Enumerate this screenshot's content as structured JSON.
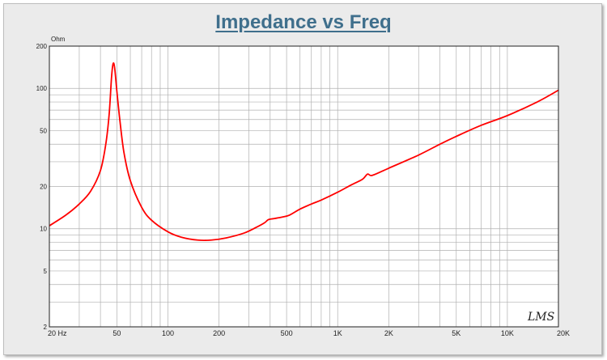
{
  "colors": {
    "frame_background": "#ebebeb",
    "plot_background": "#ffffff",
    "grid": "#b0b0b0",
    "curve": "#ff0000",
    "title": "#3f6f8c"
  },
  "watermark": "LMS",
  "chart_data": {
    "type": "line",
    "title": "Impedance vs Freq",
    "xlabel": "",
    "ylabel": "Ohm",
    "x_scale": "log",
    "y_scale": "log",
    "xlim": [
      20,
      20000
    ],
    "ylim": [
      2,
      200
    ],
    "grid": true,
    "x_tick_labels": [
      {
        "value": 20,
        "label": "20  Hz"
      },
      {
        "value": 50,
        "label": "50"
      },
      {
        "value": 100,
        "label": "100"
      },
      {
        "value": 200,
        "label": "200"
      },
      {
        "value": 500,
        "label": "500"
      },
      {
        "value": 1000,
        "label": "1K"
      },
      {
        "value": 2000,
        "label": "2K"
      },
      {
        "value": 5000,
        "label": "5K"
      },
      {
        "value": 10000,
        "label": "10K"
      },
      {
        "value": 20000,
        "label": "20K"
      }
    ],
    "y_tick_labels": [
      {
        "value": 200,
        "label": "200"
      },
      {
        "value": 100,
        "label": "100"
      },
      {
        "value": 50,
        "label": "50"
      },
      {
        "value": 20,
        "label": "20"
      },
      {
        "value": 10,
        "label": "10"
      },
      {
        "value": 5,
        "label": "5"
      },
      {
        "value": 2,
        "label": "2"
      }
    ],
    "series": [
      {
        "x": [
          20,
          25,
          30,
          35,
          40,
          43,
          45,
          46.5,
          47.5,
          48.5,
          50,
          52,
          55,
          60,
          70,
          80,
          100,
          120,
          150,
          180,
          220,
          280,
          330,
          370,
          390,
          420,
          470,
          520,
          600,
          700,
          800,
          1000,
          1200,
          1400,
          1500,
          1600,
          2000,
          3000,
          4000,
          5000,
          7000,
          10000,
          15000,
          20000
        ],
        "y": [
          10.5,
          12.5,
          15,
          18.5,
          26,
          40,
          65,
          120,
          150,
          140,
          95,
          60,
          35,
          22,
          14.2,
          11.5,
          9.5,
          8.7,
          8.3,
          8.3,
          8.6,
          9.3,
          10.2,
          11,
          11.6,
          11.8,
          12.1,
          12.5,
          13.8,
          15,
          16,
          18.2,
          20.5,
          22.5,
          24.5,
          24,
          27,
          33.5,
          40,
          45.5,
          54.5,
          64,
          80,
          97
        ]
      }
    ]
  }
}
